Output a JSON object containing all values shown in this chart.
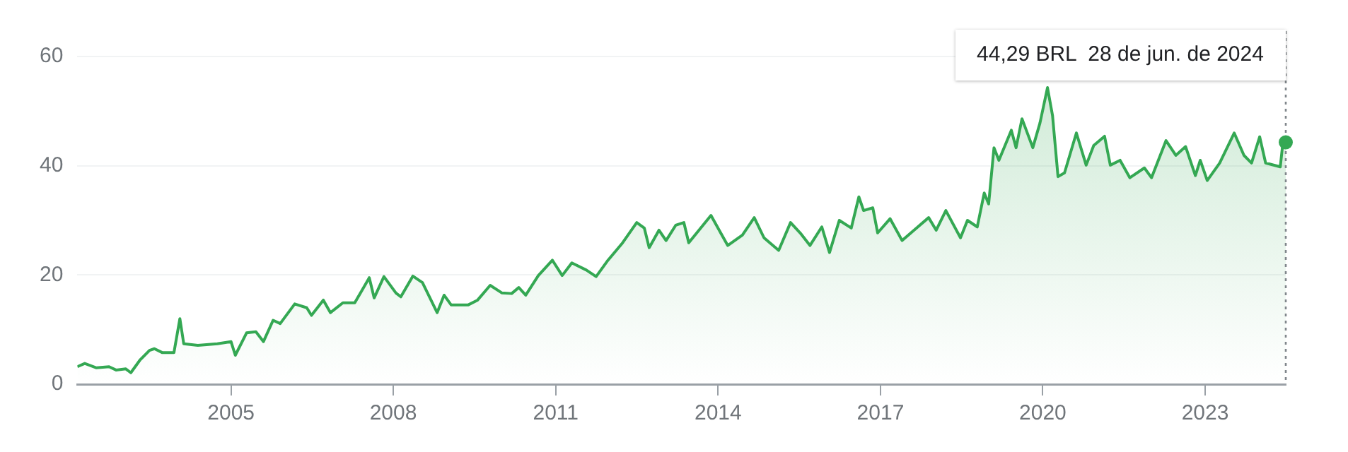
{
  "chart_data": {
    "type": "area",
    "x": [
      "2002-03-01",
      "2002-04-20",
      "2002-07-08",
      "2002-10-01",
      "2002-11-17",
      "2003-01-22",
      "2003-02-25",
      "2003-04-27",
      "2003-07-01",
      "2003-08-03",
      "2003-09-24",
      "2003-12-13",
      "2004-01-22",
      "2004-02-17",
      "2004-05-22",
      "2004-10-01",
      "2005-01-01",
      "2005-01-30",
      "2005-04-16",
      "2005-06-18",
      "2005-08-08",
      "2005-10-12",
      "2005-11-29",
      "2006-03-07",
      "2006-05-27",
      "2006-06-28",
      "2006-09-16",
      "2006-11-03",
      "2007-01-26",
      "2007-04-16",
      "2007-07-23",
      "2007-08-25",
      "2007-10-30",
      "2008-01-19",
      "2008-02-21",
      "2008-05-12",
      "2008-07-16",
      "2008-10-23",
      "2008-12-09",
      "2009-01-26",
      "2009-05-19",
      "2009-07-23",
      "2009-10-16",
      "2010-01-04",
      "2010-03-10",
      "2010-04-27",
      "2010-06-13",
      "2010-09-06",
      "2010-12-10",
      "2011-02-14",
      "2011-04-20",
      "2011-07-27",
      "2011-10-01",
      "2011-12-20",
      "2012-03-28",
      "2012-07-01",
      "2012-08-21",
      "2012-09-23",
      "2012-11-28",
      "2013-01-15",
      "2013-03-21",
      "2013-05-15",
      "2013-06-17",
      "2013-11-14",
      "2014-03-07",
      "2014-06-14",
      "2014-09-02",
      "2014-11-07",
      "2015-02-14",
      "2015-05-05",
      "2015-07-09",
      "2015-09-13",
      "2015-12-02",
      "2016-01-23",
      "2016-03-29",
      "2016-06-18",
      "2016-08-08",
      "2016-09-09",
      "2016-11-10",
      "2016-12-13",
      "2017-03-07",
      "2017-05-27",
      "2017-09-02",
      "2017-11-22",
      "2018-01-12",
      "2018-03-18",
      "2018-06-25",
      "2018-08-11",
      "2018-10-16",
      "2018-12-02",
      "2019-01-01",
      "2019-02-06",
      "2019-03-11",
      "2019-06-03",
      "2019-07-05",
      "2019-08-14",
      "2019-10-26",
      "2019-12-13",
      "2020-02-02",
      "2020-03-07",
      "2020-04-13",
      "2020-05-27",
      "2020-08-15",
      "2020-10-20",
      "2020-12-10",
      "2021-02-21",
      "2021-04-01",
      "2021-06-06",
      "2021-08-11",
      "2021-11-17",
      "2022-01-04",
      "2022-04-12",
      "2022-06-17",
      "2022-08-22",
      "2022-10-27",
      "2022-11-29",
      "2023-01-15",
      "2023-04-09",
      "2023-07-16",
      "2023-09-20",
      "2023-11-10",
      "2024-01-04",
      "2024-02-13",
      "2024-05-22",
      "2024-06-05",
      "2024-06-28"
    ],
    "series": [
      {
        "color": "#34a853",
        "values": [
          3.2,
          3.8,
          3.0,
          3.2,
          2.6,
          2.8,
          2.1,
          4.4,
          6.2,
          6.5,
          5.8,
          5.8,
          12.0,
          7.4,
          7.1,
          7.4,
          7.8,
          5.3,
          9.4,
          9.6,
          7.8,
          11.7,
          11.1,
          14.7,
          14.0,
          12.6,
          15.4,
          13.1,
          14.9,
          14.9,
          19.5,
          15.8,
          19.7,
          16.7,
          16.0,
          19.8,
          18.6,
          13.1,
          16.3,
          14.5,
          14.5,
          15.4,
          18.1,
          16.7,
          16.6,
          17.7,
          16.3,
          19.9,
          22.7,
          19.9,
          22.2,
          20.9,
          19.7,
          22.7,
          25.9,
          29.6,
          28.6,
          25.0,
          28.2,
          26.3,
          29.1,
          29.6,
          25.9,
          30.9,
          25.4,
          27.3,
          30.5,
          26.8,
          24.5,
          29.6,
          27.7,
          25.4,
          28.8,
          24.1,
          30.0,
          28.6,
          34.3,
          31.8,
          32.3,
          27.7,
          30.3,
          26.3,
          28.6,
          30.5,
          28.2,
          31.8,
          26.8,
          30.0,
          28.8,
          35.0,
          33.0,
          43.3,
          41.0,
          46.5,
          43.3,
          48.6,
          43.3,
          47.8,
          54.3,
          49.2,
          38.0,
          38.7,
          46.0,
          40.1,
          43.7,
          45.4,
          40.1,
          41.0,
          37.8,
          39.6,
          37.8,
          44.6,
          41.9,
          43.5,
          38.2,
          41.0,
          37.3,
          40.5,
          46.0,
          41.9,
          40.5,
          45.3,
          40.5,
          39.8,
          43.3,
          44.29
        ]
      }
    ],
    "xlim": [
      "2002-03-01",
      "2024-06-28"
    ],
    "xticks": [
      "2005",
      "2008",
      "2011",
      "2014",
      "2017",
      "2020",
      "2023"
    ],
    "ylim": [
      0,
      60
    ],
    "yticks": [
      0,
      20,
      40,
      60
    ],
    "grid": "y",
    "legend": false,
    "ref_lines": [
      {
        "axis": "x",
        "value": "2024-06-28",
        "line_style": "dotted",
        "color": "#80868b"
      }
    ],
    "annotations": [
      "44,29 BRL  28 de jun. de 2024"
    ]
  }
}
